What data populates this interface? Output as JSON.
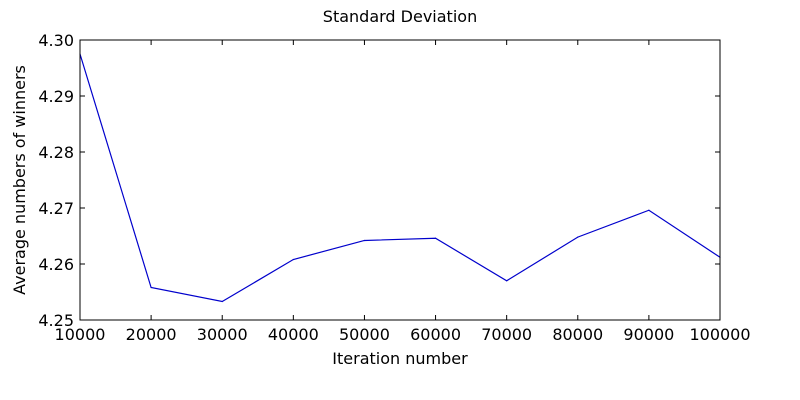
{
  "chart_data": {
    "type": "line",
    "title": "Standard Deviation",
    "xlabel": "Iteration number",
    "ylabel": "Average numbers of winners",
    "xlim": [
      10000,
      100000
    ],
    "ylim": [
      4.25,
      4.3
    ],
    "x_ticks": [
      10000,
      20000,
      30000,
      40000,
      50000,
      60000,
      70000,
      80000,
      90000,
      100000
    ],
    "x_tick_labels": [
      "10000",
      "20000",
      "30000",
      "40000",
      "50000",
      "60000",
      "70000",
      "80000",
      "90000",
      "100000"
    ],
    "y_ticks": [
      4.25,
      4.26,
      4.27,
      4.28,
      4.29,
      4.3
    ],
    "y_tick_labels": [
      "4.25",
      "4.26",
      "4.27",
      "4.28",
      "4.29",
      "4.30"
    ],
    "grid": false,
    "series": [
      {
        "color": "#0000cc",
        "x": [
          10000,
          20000,
          30000,
          40000,
          50000,
          60000,
          70000,
          80000,
          90000,
          100000
        ],
        "y": [
          4.2975,
          4.2558,
          4.2533,
          4.2608,
          4.2642,
          4.2646,
          4.257,
          4.2648,
          4.2696,
          4.2612
        ]
      }
    ]
  }
}
